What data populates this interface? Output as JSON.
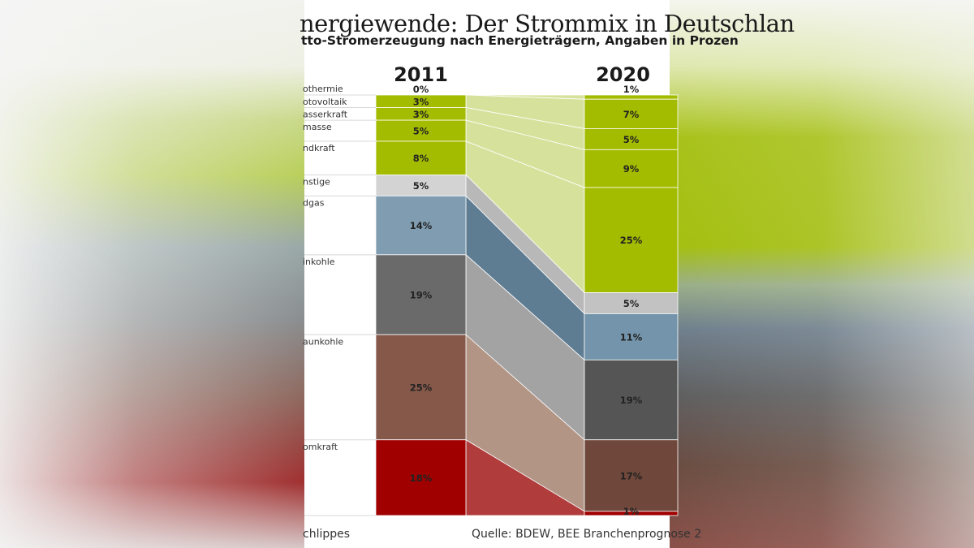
{
  "chart_data": {
    "type": "bar",
    "title": "nergiewende: Der Strommix in Deutschlan",
    "subtitle": "tto-Stromerzeugung nach Energieträgern, Angaben in Prozen",
    "categories": [
      "2011",
      "2020"
    ],
    "stacked": true,
    "ylim": [
      0,
      100
    ],
    "series": [
      {
        "name": "othermie",
        "values": [
          0,
          1
        ],
        "labels": [
          "0%",
          "1%"
        ],
        "colors": [
          "#a3bc00",
          "#a3bc00"
        ],
        "connector": "#d6e29c"
      },
      {
        "name": "otovoltaik",
        "values": [
          3,
          7
        ],
        "labels": [
          "3%",
          "7%"
        ],
        "colors": [
          "#a3bc00",
          "#a3bc00"
        ],
        "connector": "#d6e29c"
      },
      {
        "name": "asserkraft",
        "values": [
          3,
          5
        ],
        "labels": [
          "3%",
          "5%"
        ],
        "colors": [
          "#a3bc00",
          "#a3bc00"
        ],
        "connector": "#d6e29c"
      },
      {
        "name": "masse",
        "values": [
          5,
          9
        ],
        "labels": [
          "5%",
          "9%"
        ],
        "colors": [
          "#a3bc00",
          "#a3bc00"
        ],
        "connector": "#d6e29c"
      },
      {
        "name": "ndkraft",
        "values": [
          8,
          25
        ],
        "labels": [
          "8%",
          "25%"
        ],
        "colors": [
          "#a3bc00",
          "#a3bc00"
        ],
        "connector": "#d6e29c"
      },
      {
        "name": "nstige",
        "values": [
          5,
          5
        ],
        "labels": [
          "5%",
          "5%"
        ],
        "colors": [
          "#d3d3d3",
          "#c2c2c2"
        ],
        "connector": "#b8b8b8"
      },
      {
        "name": "dgas",
        "values": [
          14,
          11
        ],
        "labels": [
          "14%",
          "11%"
        ],
        "colors": [
          "#7f9cb0",
          "#7394aa"
        ],
        "connector": "#5e7c92"
      },
      {
        "name": "inkohle",
        "values": [
          19,
          19
        ],
        "labels": [
          "19%",
          "19%"
        ],
        "colors": [
          "#6a6a6a",
          "#555555"
        ],
        "connector": "#a3a3a3"
      },
      {
        "name": "aunkohle",
        "values": [
          25,
          17
        ],
        "labels": [
          "25%",
          "17%"
        ],
        "colors": [
          "#85584a",
          "#70483b"
        ],
        "connector": "#b39586"
      },
      {
        "name": "omkraft",
        "values": [
          18,
          1
        ],
        "labels": [
          "18%",
          "1%"
        ],
        "colors": [
          "#a00000",
          "#a00000"
        ],
        "connector": "#b03c3c"
      }
    ],
    "grid": false,
    "legend": "left"
  },
  "footer": {
    "author": "chlippes",
    "source": "Quelle: BDEW, BEE Branchenprognose 2"
  }
}
